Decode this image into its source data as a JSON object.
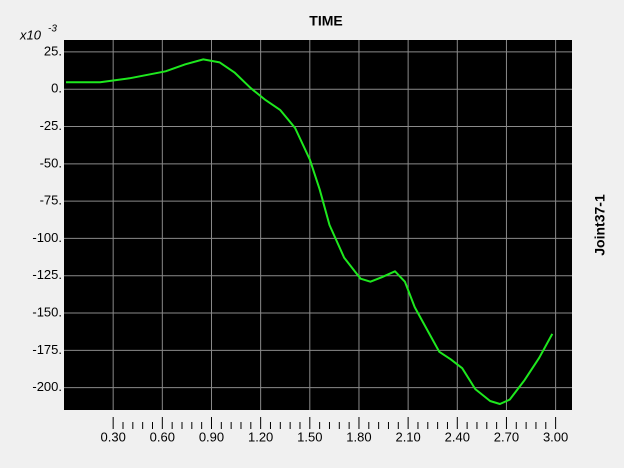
{
  "chart_data": {
    "type": "line",
    "title": "TIME",
    "y_label": "Joint37-1",
    "y_multiplier": "x10",
    "y_exponent": "-3",
    "grid": true,
    "xlim": [
      0,
      3.1
    ],
    "ylim": [
      -215,
      33
    ],
    "xticks": [
      {
        "value": 0.3,
        "label": "0.30"
      },
      {
        "value": 0.6,
        "label": "0.60"
      },
      {
        "value": 0.9,
        "label": "0.90"
      },
      {
        "value": 1.2,
        "label": "1.20"
      },
      {
        "value": 1.5,
        "label": "1.50"
      },
      {
        "value": 1.8,
        "label": "1.80"
      },
      {
        "value": 2.1,
        "label": "2.10"
      },
      {
        "value": 2.4,
        "label": "2.40"
      },
      {
        "value": 2.7,
        "label": "2.70"
      },
      {
        "value": 3.0,
        "label": "3.00"
      }
    ],
    "yticks": [
      {
        "value": 25,
        "label": "25."
      },
      {
        "value": 0,
        "label": "0."
      },
      {
        "value": -25,
        "label": "-25."
      },
      {
        "value": -50,
        "label": "-50."
      },
      {
        "value": -75,
        "label": "-75."
      },
      {
        "value": -100,
        "label": "-100."
      },
      {
        "value": -125,
        "label": "-125."
      },
      {
        "value": -150,
        "label": "-150."
      },
      {
        "value": -175,
        "label": "-175."
      },
      {
        "value": -200,
        "label": "-200."
      }
    ],
    "x": [
      0.012,
      0.22,
      0.4,
      0.62,
      0.74,
      0.85,
      0.95,
      1.04,
      1.14,
      1.23,
      1.32,
      1.41,
      1.5,
      1.56,
      1.62,
      1.71,
      1.81,
      1.87,
      1.94,
      2.02,
      2.08,
      2.14,
      2.23,
      2.29,
      2.36,
      2.43,
      2.51,
      2.6,
      2.66,
      2.72,
      2.81,
      2.9,
      2.98
    ],
    "series": [
      {
        "color": "#1ee81e",
        "values": [
          4.7,
          4.7,
          7.3,
          12,
          16.7,
          20,
          18,
          11.3,
          0.7,
          -7.3,
          -14,
          -26,
          -47,
          -67,
          -91,
          -113,
          -127,
          -129,
          -126,
          -122,
          -129,
          -146,
          -164,
          -176,
          -181,
          -187,
          -201,
          -209,
          -211,
          -208,
          -195,
          -180,
          -164
        ]
      }
    ]
  }
}
